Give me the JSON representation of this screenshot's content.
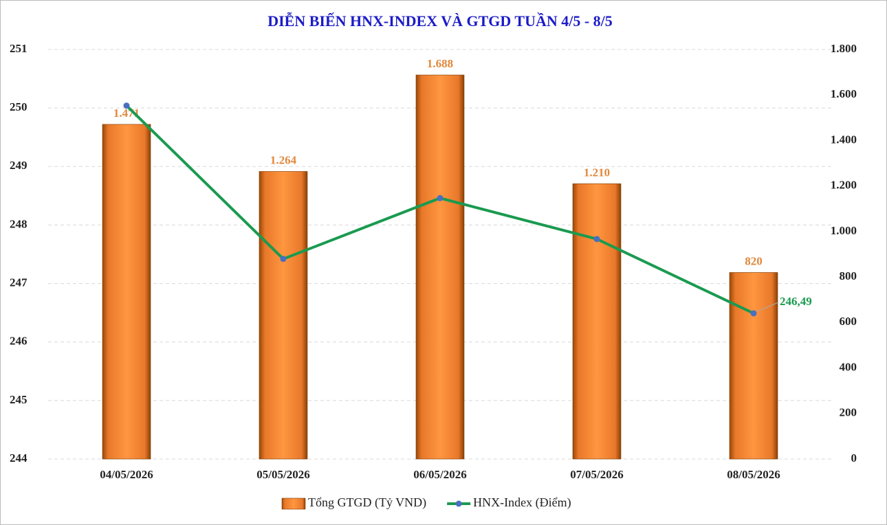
{
  "chart_data": {
    "type": "combo",
    "title": "DIỄN BIẾN HNX-INDEX VÀ GTGD TUẦN 4/5 - 8/5",
    "categories": [
      "04/05/2026",
      "05/05/2026",
      "06/05/2026",
      "07/05/2026",
      "08/05/2026"
    ],
    "series": [
      {
        "name": "Tổng GTGD (Tỷ VND)",
        "type": "bar",
        "axis": "y2",
        "color": "#f28a30",
        "label_color": "#e0883c",
        "values": [
          1471,
          1264,
          1688,
          1210,
          820
        ],
        "value_labels": [
          "1.471",
          "1.264",
          "1.688",
          "1.210",
          "820"
        ]
      },
      {
        "name": "HNX-Index (Điểm)",
        "type": "line",
        "color": "#1a9a50",
        "marker_color": "#4a6fc0",
        "values": [
          250.04,
          247.42,
          248.46,
          247.76,
          246.49
        ],
        "value_labels": [
          null,
          null,
          null,
          null,
          "246,49"
        ]
      }
    ],
    "ylim": [
      244,
      251
    ],
    "yticks": [
      244,
      245,
      246,
      247,
      248,
      249,
      250,
      251
    ],
    "y2lim": [
      0,
      1800
    ],
    "y2ticks": [
      0,
      200,
      400,
      600,
      800,
      {
        "value": 1000,
        "label": "1.000"
      },
      {
        "value": 1200,
        "label": "1.200"
      },
      {
        "value": 1400,
        "label": "1.400"
      },
      {
        "value": 1600,
        "label": "1.600"
      },
      {
        "value": 1800,
        "label": "1.800"
      }
    ],
    "grid": true,
    "legend": "bottom"
  }
}
